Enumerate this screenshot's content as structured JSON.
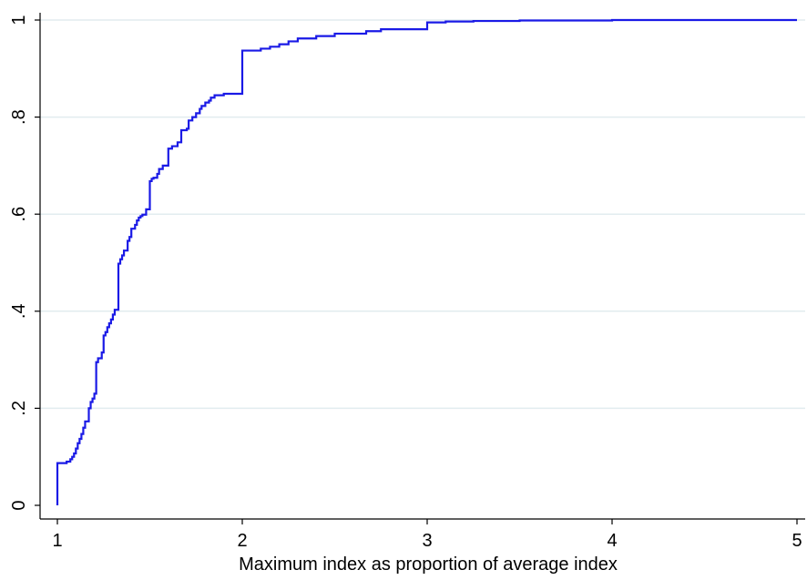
{
  "chart_data": {
    "type": "line",
    "title": "",
    "xlabel": "Maximum index as proportion of average index",
    "ylabel": "",
    "xlim": [
      1,
      5
    ],
    "ylim": [
      0,
      1
    ],
    "x_ticks": [
      1,
      2,
      3,
      4,
      5
    ],
    "x_tick_labels": [
      "1",
      "2",
      "3",
      "4",
      "5"
    ],
    "y_ticks": [
      0,
      0.2,
      0.4,
      0.6,
      0.8,
      1
    ],
    "y_tick_labels": [
      "0",
      ".2",
      ".4",
      ".6",
      ".8",
      "1"
    ],
    "grid": "horizontal",
    "line_color": "#1a1ae6",
    "grid_color": "#e2ecef",
    "step": true,
    "series": [
      {
        "x": [
          1.0,
          1.0,
          1.05,
          1.07,
          1.08,
          1.09,
          1.1,
          1.11,
          1.12,
          1.13,
          1.14,
          1.15,
          1.17,
          1.18,
          1.19,
          1.2,
          1.21,
          1.22,
          1.24,
          1.25,
          1.26,
          1.27,
          1.28,
          1.29,
          1.3,
          1.31,
          1.33,
          1.34,
          1.35,
          1.36,
          1.38,
          1.39,
          1.4,
          1.42,
          1.43,
          1.44,
          1.45,
          1.46,
          1.48,
          1.5,
          1.51,
          1.52,
          1.54,
          1.55,
          1.57,
          1.6,
          1.62,
          1.65,
          1.67,
          1.7,
          1.71,
          1.73,
          1.75,
          1.77,
          1.78,
          1.8,
          1.82,
          1.83,
          1.85,
          1.9,
          2.0,
          2.1,
          2.15,
          2.2,
          2.25,
          2.3,
          2.4,
          2.5,
          2.67,
          2.75,
          3.0,
          3.1,
          3.25,
          3.5,
          4.0,
          5.0
        ],
        "y": [
          0.0,
          0.087,
          0.09,
          0.095,
          0.1,
          0.107,
          0.117,
          0.128,
          0.137,
          0.147,
          0.16,
          0.173,
          0.2,
          0.213,
          0.22,
          0.23,
          0.295,
          0.303,
          0.315,
          0.35,
          0.357,
          0.367,
          0.375,
          0.383,
          0.393,
          0.403,
          0.498,
          0.507,
          0.515,
          0.525,
          0.545,
          0.553,
          0.57,
          0.578,
          0.587,
          0.593,
          0.596,
          0.599,
          0.61,
          0.668,
          0.673,
          0.675,
          0.683,
          0.693,
          0.7,
          0.735,
          0.74,
          0.748,
          0.773,
          0.776,
          0.793,
          0.8,
          0.808,
          0.817,
          0.823,
          0.83,
          0.834,
          0.84,
          0.845,
          0.848,
          0.937,
          0.941,
          0.945,
          0.95,
          0.956,
          0.962,
          0.967,
          0.972,
          0.977,
          0.981,
          0.995,
          0.997,
          0.998,
          0.999,
          1.0,
          1.0
        ]
      }
    ]
  }
}
